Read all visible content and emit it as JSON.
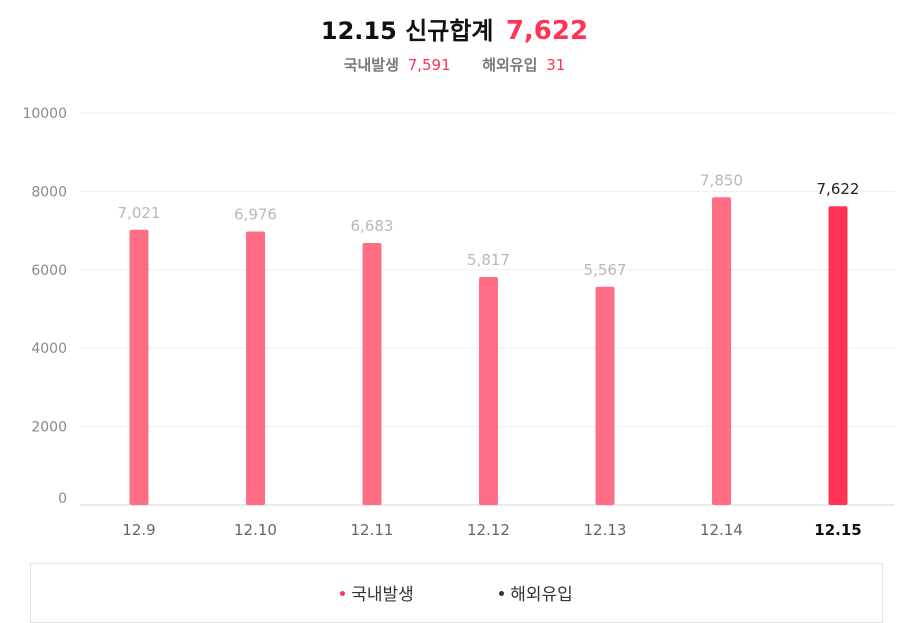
{
  "header": {
    "title_prefix": "12.15 신규합계",
    "total": "7,622",
    "domestic_label": "국내발생",
    "domestic_value": "7,591",
    "overseas_label": "해외유입",
    "overseas_value": "31"
  },
  "colors": {
    "bar": "#ff6e85",
    "bar_highlight": "#ff3355",
    "accent": "#ff3355",
    "domestic_dot": "#ff3355",
    "overseas_dot": "#333333"
  },
  "legend": {
    "items": [
      {
        "label": "국내발생",
        "color": "#ff3355"
      },
      {
        "label": "해외유입",
        "color": "#333333"
      }
    ]
  },
  "chart_data": {
    "type": "bar",
    "title": "",
    "xlabel": "",
    "ylabel": "",
    "categories": [
      "12.9",
      "12.10",
      "12.11",
      "12.12",
      "12.13",
      "12.14",
      "12.15"
    ],
    "values": [
      7021,
      6976,
      6683,
      5817,
      5567,
      7850,
      7622
    ],
    "value_labels": [
      "7,021",
      "6,976",
      "6,683",
      "5,817",
      "5,567",
      "7,850",
      "7,622"
    ],
    "highlight_index": 6,
    "ylim": [
      0,
      10000
    ],
    "yticks": [
      0,
      2000,
      4000,
      6000,
      8000,
      10000
    ],
    "grid": true,
    "legend_position": "bottom"
  }
}
